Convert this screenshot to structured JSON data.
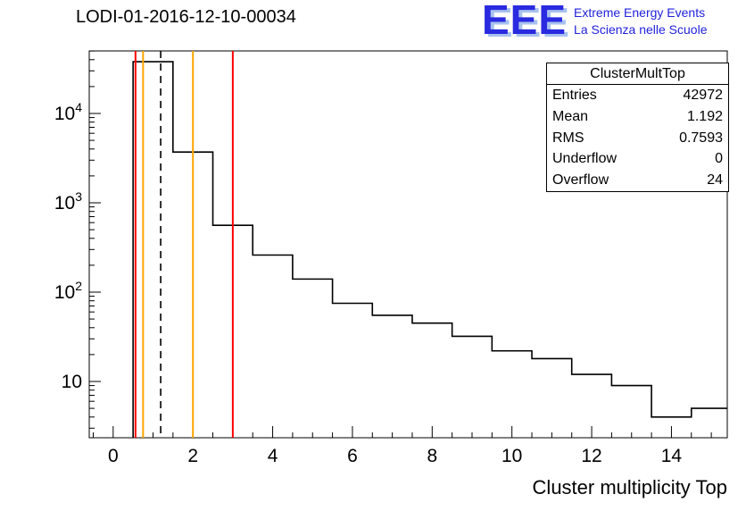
{
  "header": {
    "title": "LODI-01-2016-12-10-00034"
  },
  "logo": {
    "text": "EEE",
    "line1": "Extreme Energy Events",
    "line2": "La Scienza nelle Scuole",
    "color": "#2a2ae0",
    "shadow_color": "#a8c2ee"
  },
  "stats": {
    "title": "ClusterMultTop",
    "rows": [
      {
        "label": "Entries",
        "value": "42972"
      },
      {
        "label": "Mean",
        "value": "1.192"
      },
      {
        "label": "RMS",
        "value": "0.7593"
      },
      {
        "label": "Underflow",
        "value": "0"
      },
      {
        "label": "Overflow",
        "value": "24"
      }
    ]
  },
  "chart_data": {
    "type": "bar",
    "subtype": "step-histogram-log-y",
    "title": "LODI-01-2016-12-10-00034",
    "xlabel": "Cluster multiplicity Top",
    "ylabel": "",
    "x_range": [
      -0.6,
      15.4
    ],
    "y_log_range": [
      0.37,
      4.7
    ],
    "x_major_ticks": [
      0,
      2,
      4,
      6,
      8,
      10,
      12,
      14
    ],
    "x_minor_step": 0.5,
    "y_label_decades": [
      1,
      2,
      3,
      4
    ],
    "grid": false,
    "legend_position": "none",
    "bin_width": 1,
    "first_edge": 0.5,
    "bin_centers": [
      1,
      2,
      3,
      4,
      5,
      6,
      7,
      8,
      9,
      10,
      11,
      12,
      13,
      14,
      15
    ],
    "counts": [
      38000,
      3700,
      560,
      260,
      140,
      75,
      55,
      45,
      32,
      22,
      18,
      12,
      9,
      4,
      5
    ],
    "line_color": "#000000",
    "vlines": [
      {
        "x": 0.56,
        "color": "#ff0000",
        "style": "solid"
      },
      {
        "x": 0.75,
        "color": "#ffa500",
        "style": "solid"
      },
      {
        "x": 1.192,
        "color": "#000000",
        "style": "dashed"
      },
      {
        "x": 2.0,
        "color": "#ffa500",
        "style": "solid"
      },
      {
        "x": 3.0,
        "color": "#ff0000",
        "style": "solid"
      }
    ]
  }
}
